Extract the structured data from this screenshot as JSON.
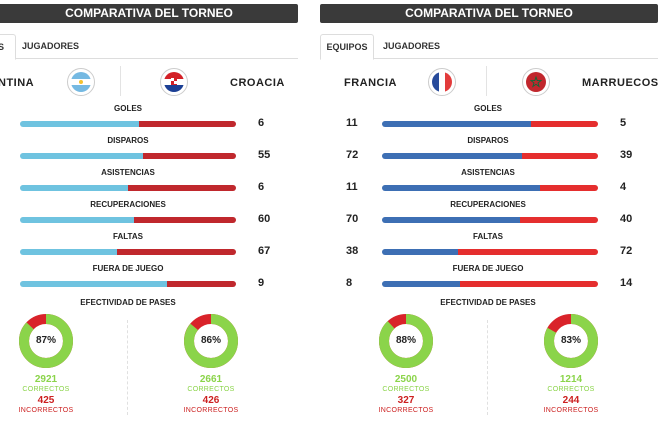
{
  "left": {
    "header": "COMPARATIVA DEL TORNEO",
    "tabs": [
      "S",
      "JUGADORES"
    ],
    "team1": "NTINA",
    "team2": "CROACIA",
    "team1_color": "#6fc3e0",
    "team2_color": "#c0282d",
    "stats": [
      {
        "label": "GOLES",
        "left_val": "",
        "right_val": "6",
        "left_share": 0.55
      },
      {
        "label": "DISPAROS",
        "left_val": "",
        "right_val": "55",
        "left_share": 0.57
      },
      {
        "label": "ASISTENCIAS",
        "left_val": "",
        "right_val": "6",
        "left_share": 0.5
      },
      {
        "label": "RECUPERACIONES",
        "left_val": "",
        "right_val": "60",
        "left_share": 0.53
      },
      {
        "label": "FALTAS",
        "left_val": "",
        "right_val": "67",
        "left_share": 0.45
      },
      {
        "label": "FUERA DE JUEGO",
        "left_val": "",
        "right_val": "9",
        "left_share": 0.68
      }
    ],
    "pases_label": "EFECTIVIDAD DE PASES",
    "pases": [
      {
        "pct": 87,
        "pct_text": "87%",
        "correct": "2921",
        "correct_label": "CORRECTOS",
        "wrong": "425",
        "wrong_label": "INCORRECTOS"
      },
      {
        "pct": 86,
        "pct_text": "86%",
        "correct": "2661",
        "correct_label": "CORRECTOS",
        "wrong": "426",
        "wrong_label": "INCORRECTOS"
      }
    ]
  },
  "right": {
    "header": "COMPARATIVA DEL TORNEO",
    "tabs": [
      "EQUIPOS",
      "JUGADORES"
    ],
    "team1": "FRANCIA",
    "team2": "MARRUECOS",
    "team1_color": "#3d6fb4",
    "team2_color": "#e52e2e",
    "stats": [
      {
        "label": "GOLES",
        "left_val": "11",
        "right_val": "5",
        "left_share": 0.69
      },
      {
        "label": "DISPAROS",
        "left_val": "72",
        "right_val": "39",
        "left_share": 0.65
      },
      {
        "label": "ASISTENCIAS",
        "left_val": "11",
        "right_val": "4",
        "left_share": 0.73
      },
      {
        "label": "RECUPERACIONES",
        "left_val": "70",
        "right_val": "40",
        "left_share": 0.64
      },
      {
        "label": "FALTAS",
        "left_val": "38",
        "right_val": "72",
        "left_share": 0.35
      },
      {
        "label": "FUERA DE JUEGO",
        "left_val": "8",
        "right_val": "14",
        "left_share": 0.36
      }
    ],
    "pases_label": "EFECTIVIDAD DE PASES",
    "pases": [
      {
        "pct": 88,
        "pct_text": "88%",
        "correct": "2500",
        "correct_label": "CORRECTOS",
        "wrong": "327",
        "wrong_label": "INCORRECTOS"
      },
      {
        "pct": 83,
        "pct_text": "83%",
        "correct": "1214",
        "correct_label": "CORRECTOS",
        "wrong": "244",
        "wrong_label": "INCORRECTOS"
      }
    ]
  },
  "donut_colors": {
    "ok": "#8bd44a",
    "bad": "#d9232a"
  }
}
